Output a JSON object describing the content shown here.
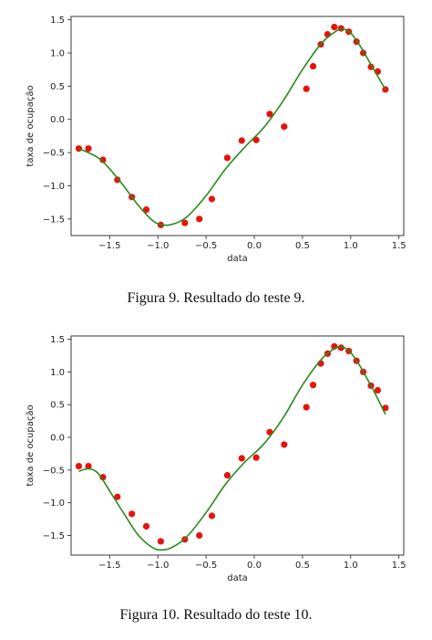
{
  "figures": [
    {
      "caption": "Figura 9. Resultado do teste 9.",
      "chart_data": {
        "type": "scatter",
        "xlabel": "data",
        "ylabel": "taxa de ocupação",
        "xlim": [
          -1.9,
          1.55
        ],
        "ylim": [
          -1.75,
          1.55
        ],
        "xticks": [
          "−1.5",
          "−1.0",
          "−0.5",
          "0.0",
          "0.5",
          "1.0",
          "1.5"
        ],
        "xtick_values": [
          -1.5,
          -1.0,
          -0.5,
          0.0,
          0.5,
          1.0,
          1.5
        ],
        "yticks": [
          "−1.5",
          "−1.0",
          "−0.5",
          "0.0",
          "0.5",
          "1.0",
          "1.5"
        ],
        "ytick_values": [
          -1.5,
          -1.0,
          -0.5,
          0.0,
          0.5,
          1.0,
          1.5
        ],
        "grid": false,
        "series": [
          {
            "kind": "points",
            "color": "#e8120c",
            "x": [
              -1.82,
              -1.72,
              -1.57,
              -1.42,
              -1.27,
              -1.12,
              -0.97,
              -0.72,
              -0.57,
              -0.44,
              -0.28,
              -0.13,
              0.02,
              0.16,
              0.31,
              0.54,
              0.61,
              0.69,
              0.76,
              0.83,
              0.9,
              0.98,
              1.06,
              1.13,
              1.21,
              1.28,
              1.36
            ],
            "y": [
              -0.44,
              -0.44,
              -0.61,
              -0.91,
              -1.17,
              -1.36,
              -1.59,
              -1.56,
              -1.5,
              -1.2,
              -0.58,
              -0.32,
              -0.31,
              0.08,
              -0.11,
              0.46,
              0.8,
              1.13,
              1.28,
              1.39,
              1.37,
              1.32,
              1.17,
              1.0,
              0.79,
              0.72,
              0.45
            ]
          },
          {
            "kind": "line",
            "color": "#2a8a1e",
            "x": [
              -1.82,
              -1.6,
              -1.4,
              -1.2,
              -1.05,
              -0.95,
              -0.85,
              -0.7,
              -0.5,
              -0.3,
              -0.1,
              0.1,
              0.3,
              0.5,
              0.7,
              0.85,
              0.92,
              1.0,
              1.1,
              1.2,
              1.3,
              1.36
            ],
            "y": [
              -0.44,
              -0.6,
              -0.92,
              -1.3,
              -1.53,
              -1.59,
              -1.58,
              -1.47,
              -1.15,
              -0.75,
              -0.42,
              -0.12,
              0.28,
              0.75,
              1.15,
              1.33,
              1.36,
              1.3,
              1.1,
              0.85,
              0.6,
              0.45
            ]
          }
        ]
      }
    },
    {
      "caption": "Figura 10. Resultado do teste 10.",
      "chart_data": {
        "type": "scatter",
        "xlabel": "data",
        "ylabel": "taxa de ocupação",
        "xlim": [
          -1.9,
          1.55
        ],
        "ylim": [
          -1.8,
          1.55
        ],
        "xticks": [
          "−1.5",
          "−1.0",
          "−0.5",
          "0.0",
          "0.5",
          "1.0",
          "1.5"
        ],
        "xtick_values": [
          -1.5,
          -1.0,
          -0.5,
          0.0,
          0.5,
          1.0,
          1.5
        ],
        "yticks": [
          "−1.5",
          "−1.0",
          "−0.5",
          "0.0",
          "0.5",
          "1.0",
          "1.5"
        ],
        "ytick_values": [
          -1.5,
          -1.0,
          -0.5,
          0.0,
          0.5,
          1.0,
          1.5
        ],
        "grid": false,
        "series": [
          {
            "kind": "points",
            "color": "#e8120c",
            "x": [
              -1.82,
              -1.72,
              -1.57,
              -1.42,
              -1.27,
              -1.12,
              -0.97,
              -0.72,
              -0.57,
              -0.44,
              -0.28,
              -0.13,
              0.02,
              0.16,
              0.31,
              0.54,
              0.61,
              0.69,
              0.76,
              0.83,
              0.9,
              0.98,
              1.06,
              1.13,
              1.21,
              1.28,
              1.36
            ],
            "y": [
              -0.44,
              -0.44,
              -0.61,
              -0.91,
              -1.17,
              -1.36,
              -1.59,
              -1.56,
              -1.5,
              -1.2,
              -0.58,
              -0.32,
              -0.31,
              0.08,
              -0.11,
              0.46,
              0.8,
              1.13,
              1.28,
              1.39,
              1.37,
              1.32,
              1.17,
              1.0,
              0.79,
              0.72,
              0.45
            ]
          },
          {
            "kind": "line",
            "color": "#2a8a1e",
            "x": [
              -1.82,
              -1.72,
              -1.62,
              -1.5,
              -1.35,
              -1.2,
              -1.05,
              -0.95,
              -0.85,
              -0.7,
              -0.5,
              -0.3,
              -0.1,
              0.1,
              0.3,
              0.5,
              0.7,
              0.85,
              0.95,
              1.05,
              1.15,
              1.25,
              1.36
            ],
            "y": [
              -0.52,
              -0.48,
              -0.55,
              -0.82,
              -1.17,
              -1.5,
              -1.69,
              -1.72,
              -1.68,
              -1.52,
              -1.15,
              -0.72,
              -0.38,
              -0.1,
              0.3,
              0.8,
              1.2,
              1.37,
              1.36,
              1.2,
              0.95,
              0.68,
              0.35
            ]
          }
        ]
      }
    }
  ]
}
